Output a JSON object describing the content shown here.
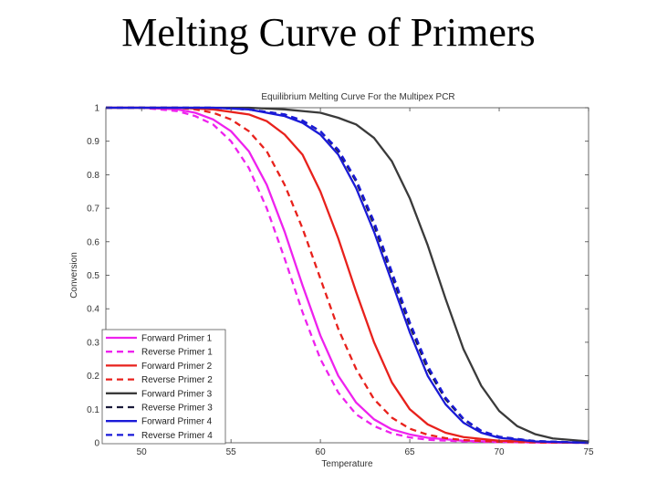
{
  "slide": {
    "title": "Melting Curve of Primers"
  },
  "chart_data": {
    "type": "line",
    "title": "Equilibrium Melting Curve For the Multipex PCR",
    "xlabel": "Temperature",
    "ylabel": "Conversion",
    "xlim": [
      48,
      75
    ],
    "ylim": [
      0,
      1
    ],
    "xticks": [
      50,
      55,
      60,
      65,
      70,
      75
    ],
    "yticks": [
      0,
      0.1,
      0.2,
      0.3,
      0.4,
      0.5,
      0.6,
      0.7,
      0.8,
      0.9,
      1
    ],
    "ytick_labels": [
      "0",
      "0.1",
      "0.2",
      "0.3",
      "0.4",
      "0.5",
      "0.6",
      "0.7",
      "0.8",
      "0.9",
      "1"
    ],
    "grid": false,
    "legend_position": "bottom-left",
    "series": [
      {
        "name": "Forward Primer 1",
        "color": "#ee22ee",
        "dash": "solid",
        "x": [
          48,
          50,
          52,
          53,
          54,
          55,
          56,
          57,
          58,
          59,
          60,
          61,
          62,
          63,
          64,
          65,
          66,
          68,
          70,
          72,
          75
        ],
        "y": [
          1.0,
          1.0,
          0.995,
          0.985,
          0.965,
          0.93,
          0.87,
          0.77,
          0.63,
          0.47,
          0.32,
          0.2,
          0.12,
          0.07,
          0.04,
          0.025,
          0.015,
          0.006,
          0.003,
          0.001,
          0.0
        ]
      },
      {
        "name": "Reverse Primer 1",
        "color": "#ee22ee",
        "dash": "dashed",
        "x": [
          48,
          50,
          52,
          53,
          54,
          55,
          56,
          57,
          58,
          59,
          60,
          61,
          62,
          63,
          64,
          65,
          66,
          68,
          70,
          72,
          75
        ],
        "y": [
          1.0,
          1.0,
          0.99,
          0.975,
          0.95,
          0.9,
          0.82,
          0.7,
          0.55,
          0.39,
          0.25,
          0.15,
          0.085,
          0.05,
          0.028,
          0.016,
          0.009,
          0.004,
          0.002,
          0.001,
          0.0
        ]
      },
      {
        "name": "Forward Primer 2",
        "color": "#e8211c",
        "dash": "solid",
        "x": [
          48,
          52,
          54,
          56,
          57,
          58,
          59,
          60,
          61,
          62,
          63,
          64,
          65,
          66,
          67,
          68,
          70,
          72,
          75
        ],
        "y": [
          1.0,
          1.0,
          0.995,
          0.98,
          0.96,
          0.92,
          0.86,
          0.75,
          0.61,
          0.45,
          0.3,
          0.18,
          0.1,
          0.055,
          0.03,
          0.017,
          0.006,
          0.003,
          0.0
        ]
      },
      {
        "name": "Reverse Primer 2",
        "color": "#e8211c",
        "dash": "dashed",
        "x": [
          48,
          52,
          53,
          54,
          55,
          56,
          57,
          58,
          59,
          60,
          61,
          62,
          63,
          64,
          65,
          66,
          67,
          68,
          70,
          72,
          75
        ],
        "y": [
          1.0,
          1.0,
          0.995,
          0.985,
          0.965,
          0.93,
          0.87,
          0.77,
          0.64,
          0.49,
          0.34,
          0.22,
          0.13,
          0.075,
          0.042,
          0.024,
          0.014,
          0.008,
          0.003,
          0.001,
          0.0
        ]
      },
      {
        "name": "Forward Primer 3",
        "color": "#3a3a3a",
        "dash": "solid",
        "x": [
          48,
          56,
          58,
          60,
          61,
          62,
          63,
          64,
          65,
          66,
          67,
          68,
          69,
          70,
          71,
          72,
          73,
          75
        ],
        "y": [
          1.0,
          1.0,
          0.995,
          0.985,
          0.97,
          0.95,
          0.91,
          0.84,
          0.73,
          0.59,
          0.43,
          0.28,
          0.17,
          0.095,
          0.05,
          0.026,
          0.013,
          0.004
        ]
      },
      {
        "name": "Reverse Primer 3",
        "color": "#1a1a3a",
        "dash": "dashed",
        "x": [
          48,
          54,
          56,
          58,
          59,
          60,
          61,
          62,
          63,
          64,
          65,
          66,
          67,
          68,
          69,
          70,
          72,
          75
        ],
        "y": [
          1.0,
          1.0,
          0.995,
          0.98,
          0.96,
          0.93,
          0.87,
          0.78,
          0.65,
          0.5,
          0.35,
          0.22,
          0.13,
          0.07,
          0.035,
          0.018,
          0.005,
          0.0
        ]
      },
      {
        "name": "Forward Primer 4",
        "color": "#1a1ad8",
        "dash": "solid",
        "x": [
          48,
          54,
          56,
          58,
          59,
          60,
          61,
          62,
          63,
          64,
          65,
          66,
          67,
          68,
          69,
          70,
          72,
          75
        ],
        "y": [
          1.0,
          1.0,
          0.995,
          0.975,
          0.955,
          0.92,
          0.86,
          0.76,
          0.63,
          0.48,
          0.33,
          0.2,
          0.115,
          0.06,
          0.03,
          0.015,
          0.004,
          0.0
        ]
      },
      {
        "name": "Reverse Primer 4",
        "color": "#1a1ad8",
        "dash": "dashed",
        "x": [
          48,
          54,
          56,
          58,
          59,
          60,
          61,
          62,
          63,
          64,
          65,
          66,
          67,
          68,
          69,
          70,
          72,
          75
        ],
        "y": [
          1.0,
          1.0,
          0.995,
          0.98,
          0.962,
          0.93,
          0.875,
          0.785,
          0.66,
          0.51,
          0.36,
          0.23,
          0.135,
          0.072,
          0.036,
          0.018,
          0.005,
          0.0
        ]
      }
    ]
  }
}
